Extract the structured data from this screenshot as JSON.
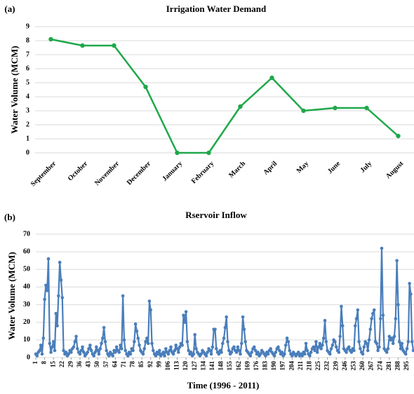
{
  "chart_data": [
    {
      "type": "line",
      "panel": "(a)",
      "title": "Irrigation Water Demand",
      "ylabel": "Water Volume (MCM)",
      "categories": [
        "September",
        "October",
        "November",
        "December",
        "January",
        "February",
        "March",
        "April",
        "May",
        "June",
        "July",
        "August"
      ],
      "series": [
        {
          "color": "#1fa84a",
          "values": [
            8.1,
            7.65,
            7.65,
            4.7,
            0,
            0,
            3.3,
            5.35,
            3.0,
            3.2,
            3.2,
            1.2
          ]
        }
      ],
      "ylim": [
        0,
        9
      ],
      "yticks": [
        0,
        1,
        2,
        3,
        4,
        5,
        6,
        7,
        8,
        9
      ],
      "grid": true
    },
    {
      "type": "line",
      "panel": "(b)",
      "title": "Rservoir Inflow",
      "ylabel": "Water Volume (MCM)",
      "xlabel": "Time (1996 - 2011)",
      "x": [
        1,
        2,
        3,
        4,
        5,
        6,
        7,
        8,
        9,
        10,
        11,
        12,
        13,
        14,
        15,
        16,
        17,
        18,
        19,
        20,
        21,
        22,
        23,
        24,
        25,
        26,
        27,
        28,
        29,
        30,
        31,
        32,
        33,
        34,
        35,
        36,
        37,
        38,
        39,
        40,
        41,
        42,
        43,
        44,
        45,
        46,
        47,
        48,
        49,
        50,
        51,
        52,
        53,
        54,
        55,
        56,
        57,
        58,
        59,
        60,
        61,
        62,
        63,
        64,
        65,
        66,
        67,
        68,
        69,
        70,
        71,
        72,
        73,
        74,
        75,
        76,
        77,
        78,
        79,
        80,
        81,
        82,
        83,
        84,
        85,
        86,
        87,
        88,
        89,
        90,
        91,
        92,
        93,
        94,
        95,
        96,
        97,
        98,
        99,
        100,
        101,
        102,
        103,
        104,
        105,
        106,
        107,
        108,
        109,
        110,
        111,
        112,
        113,
        114,
        115,
        116,
        117,
        118,
        119,
        120,
        121,
        122,
        123,
        124,
        125,
        126,
        127,
        128,
        129,
        130,
        131,
        132,
        133,
        134,
        135,
        136,
        137,
        138,
        139,
        140,
        141,
        142,
        143,
        144,
        145,
        146,
        147,
        148,
        149,
        150,
        151,
        152,
        153,
        154,
        155,
        156,
        157,
        158,
        159,
        160,
        161,
        162,
        163,
        164,
        165,
        166,
        167,
        168,
        169,
        170,
        171,
        172,
        173,
        174,
        175,
        176,
        177,
        178,
        179,
        180,
        181,
        182,
        183,
        184,
        185,
        186,
        187,
        188,
        189,
        190,
        191,
        192,
        193,
        194,
        195,
        196,
        197,
        198,
        199,
        200,
        201,
        202,
        203,
        204,
        205,
        206,
        207,
        208,
        209,
        210,
        211,
        212,
        213,
        214,
        215,
        216,
        217,
        218,
        219,
        220,
        221,
        222,
        223,
        224,
        225,
        226,
        227,
        228,
        229,
        230,
        231,
        232,
        233,
        234,
        235,
        236,
        237,
        238,
        239,
        240,
        241,
        242,
        243,
        244,
        245,
        246,
        247,
        248,
        249,
        250,
        251,
        252,
        253,
        254,
        255,
        256,
        257,
        258,
        259,
        260,
        261,
        262,
        263,
        264,
        265,
        266,
        267,
        268,
        269,
        270,
        271,
        272,
        273,
        274,
        275,
        276,
        277,
        278,
        279,
        280,
        281,
        282,
        283,
        284,
        285,
        286,
        287,
        288,
        289,
        290,
        291,
        292,
        293,
        294,
        295,
        296,
        297,
        298,
        299,
        300
      ],
      "series": [
        {
          "color": "#4a7ebb",
          "values": [
            2,
            1,
            3,
            4,
            7,
            2,
            11,
            33,
            41,
            38,
            56,
            8,
            3,
            6,
            9,
            4,
            25,
            18,
            35,
            54,
            44,
            34,
            4,
            2,
            3,
            1,
            2,
            4,
            3,
            5,
            6,
            9,
            12,
            5,
            3,
            2,
            4,
            6,
            3,
            1,
            2,
            3,
            5,
            7,
            4,
            2,
            1,
            3,
            6,
            4,
            2,
            5,
            8,
            11,
            17,
            9,
            4,
            2,
            1,
            3,
            2,
            1,
            4,
            3,
            6,
            4,
            3,
            7,
            5,
            35,
            10,
            4,
            2,
            1,
            3,
            2,
            5,
            4,
            9,
            19,
            15,
            11,
            7,
            4,
            3,
            2,
            5,
            9,
            11,
            8,
            32,
            27,
            8,
            4,
            2,
            1,
            3,
            2,
            4,
            1,
            2,
            3,
            1,
            5,
            3,
            2,
            4,
            6,
            3,
            2,
            4,
            7,
            5,
            3,
            6,
            8,
            7,
            24,
            20,
            26,
            9,
            4,
            2,
            3,
            1,
            2,
            13,
            5,
            3,
            2,
            1,
            2,
            4,
            3,
            2,
            1,
            3,
            5,
            4,
            2,
            6,
            16,
            16,
            5,
            3,
            2,
            4,
            3,
            8,
            11,
            17,
            23,
            9,
            4,
            2,
            3,
            5,
            6,
            4,
            3,
            6,
            4,
            2,
            8,
            23,
            16,
            9,
            4,
            3,
            2,
            1,
            3,
            5,
            6,
            4,
            2,
            3,
            1,
            2,
            4,
            3,
            2,
            1,
            3,
            2,
            4,
            5,
            3,
            2,
            1,
            3,
            5,
            6,
            4,
            2,
            3,
            1,
            2,
            7,
            11,
            9,
            4,
            2,
            1,
            3,
            2,
            1,
            2,
            3,
            1,
            2,
            1,
            3,
            2,
            8,
            4,
            2,
            1,
            3,
            5,
            6,
            4,
            9,
            3,
            6,
            8,
            5,
            7,
            11,
            21,
            9,
            4,
            3,
            2,
            5,
            7,
            10,
            9,
            6,
            4,
            3,
            12,
            29,
            18,
            5,
            4,
            3,
            5,
            6,
            4,
            3,
            5,
            4,
            18,
            22,
            27,
            9,
            5,
            3,
            2,
            6,
            9,
            8,
            4,
            10,
            16,
            22,
            25,
            27,
            9,
            8,
            4,
            6,
            22,
            62,
            24,
            5,
            4,
            3,
            5,
            12,
            10,
            11,
            8,
            12,
            22,
            55,
            30,
            9,
            5,
            8,
            4,
            3,
            2,
            5,
            9,
            42,
            36,
            9,
            4
          ]
        }
      ],
      "xlim": [
        1,
        300
      ],
      "xticks": [
        1,
        8,
        15,
        22,
        29,
        36,
        43,
        50,
        57,
        64,
        71,
        78,
        85,
        92,
        99,
        106,
        113,
        120,
        127,
        134,
        141,
        148,
        155,
        162,
        169,
        176,
        183,
        190,
        197,
        204,
        211,
        218,
        225,
        232,
        239,
        246,
        253,
        260,
        267,
        274,
        281,
        288,
        295
      ],
      "ylim": [
        0,
        70
      ],
      "yticks": [
        0,
        10,
        20,
        30,
        40,
        50,
        60,
        70
      ],
      "grid": true
    }
  ]
}
